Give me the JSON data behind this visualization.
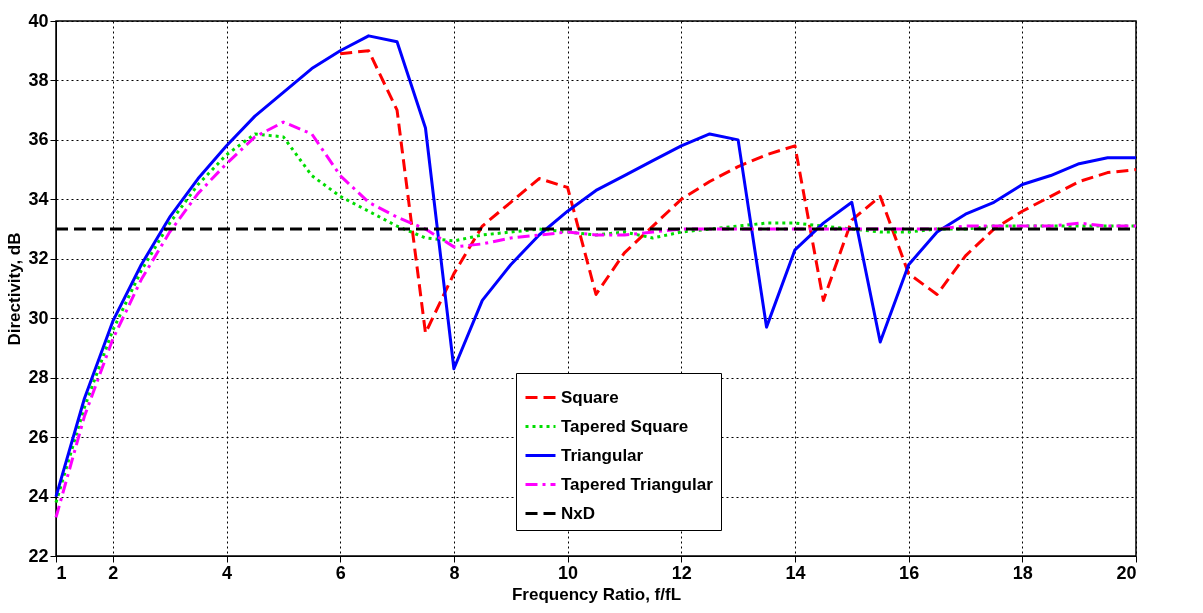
{
  "chart_data": {
    "type": "line",
    "xlabel": "Frequency Ratio, f/fL",
    "ylabel": "Directivity, dB",
    "x": [
      1,
      1.5,
      2,
      2.5,
      3,
      3.5,
      4,
      4.5,
      5,
      5.5,
      6,
      6.5,
      7,
      7.5,
      8,
      8.5,
      9,
      9.5,
      10,
      10.5,
      11,
      11.5,
      12,
      12.5,
      13,
      13.5,
      14,
      14.5,
      15,
      15.5,
      16,
      16.5,
      17,
      17.5,
      18,
      18.5,
      19,
      19.5,
      20
    ],
    "series": [
      {
        "name": "Square",
        "color": "#ff0000",
        "line_style": "dashed",
        "values": [
          null,
          null,
          null,
          null,
          null,
          null,
          null,
          null,
          null,
          null,
          38.9,
          39.0,
          37.0,
          29.5,
          31.5,
          33.1,
          33.9,
          34.7,
          34.4,
          30.8,
          32.2,
          33.1,
          34.0,
          34.6,
          35.1,
          35.5,
          35.8,
          30.6,
          33.3,
          34.1,
          31.5,
          30.8,
          32.1,
          33.0,
          33.6,
          34.1,
          34.6,
          34.9,
          35.0
        ]
      },
      {
        "name": "Tapered Square",
        "color": "#00dd00",
        "line_style": "dotted",
        "values": [
          23.8,
          27.0,
          29.6,
          31.6,
          33.2,
          34.5,
          35.5,
          36.2,
          36.1,
          34.8,
          34.1,
          33.6,
          33.1,
          32.7,
          32.6,
          32.8,
          32.9,
          33.0,
          32.9,
          32.8,
          32.9,
          32.7,
          32.9,
          33.0,
          33.1,
          33.2,
          33.2,
          33.1,
          33.0,
          32.9,
          32.9,
          33.0,
          33.0,
          33.1,
          33.1,
          33.1,
          33.1,
          33.1,
          33.1
        ]
      },
      {
        "name": "Triangular",
        "color": "#0000ff",
        "line_style": "solid",
        "values": [
          24.0,
          27.3,
          29.9,
          31.8,
          33.4,
          34.7,
          35.8,
          36.8,
          37.6,
          38.4,
          39.0,
          39.5,
          39.3,
          36.4,
          28.3,
          30.6,
          31.8,
          32.8,
          33.6,
          34.3,
          34.8,
          35.3,
          35.8,
          36.2,
          36.0,
          29.7,
          32.3,
          33.2,
          33.9,
          29.2,
          31.8,
          32.9,
          33.5,
          33.9,
          34.5,
          34.8,
          35.2,
          35.4,
          35.4
        ]
      },
      {
        "name": "Tapered Triangular",
        "color": "#ff00ff",
        "line_style": "dashdot",
        "values": [
          23.3,
          26.7,
          29.3,
          31.3,
          32.9,
          34.2,
          35.2,
          36.1,
          36.6,
          36.2,
          34.8,
          33.9,
          33.4,
          33.0,
          32.4,
          32.5,
          32.7,
          32.8,
          32.9,
          32.8,
          32.8,
          32.9,
          33.0,
          33.0,
          33.0,
          33.0,
          33.0,
          33.0,
          33.0,
          33.0,
          33.0,
          33.0,
          33.1,
          33.1,
          33.1,
          33.1,
          33.2,
          33.1,
          33.1
        ]
      },
      {
        "name": "NxD",
        "color": "#000000",
        "line_style": "dashed",
        "x": [
          1,
          20
        ],
        "values": [
          33,
          33
        ]
      }
    ],
    "xlim": [
      1,
      20
    ],
    "xticks": [
      1,
      2,
      4,
      6,
      8,
      10,
      12,
      14,
      16,
      18,
      20
    ],
    "ylim": [
      22,
      40
    ],
    "yticks": [
      22,
      24,
      26,
      28,
      30,
      32,
      34,
      36,
      38,
      40
    ],
    "grid": true,
    "legend": "bottom",
    "marker": "none"
  }
}
